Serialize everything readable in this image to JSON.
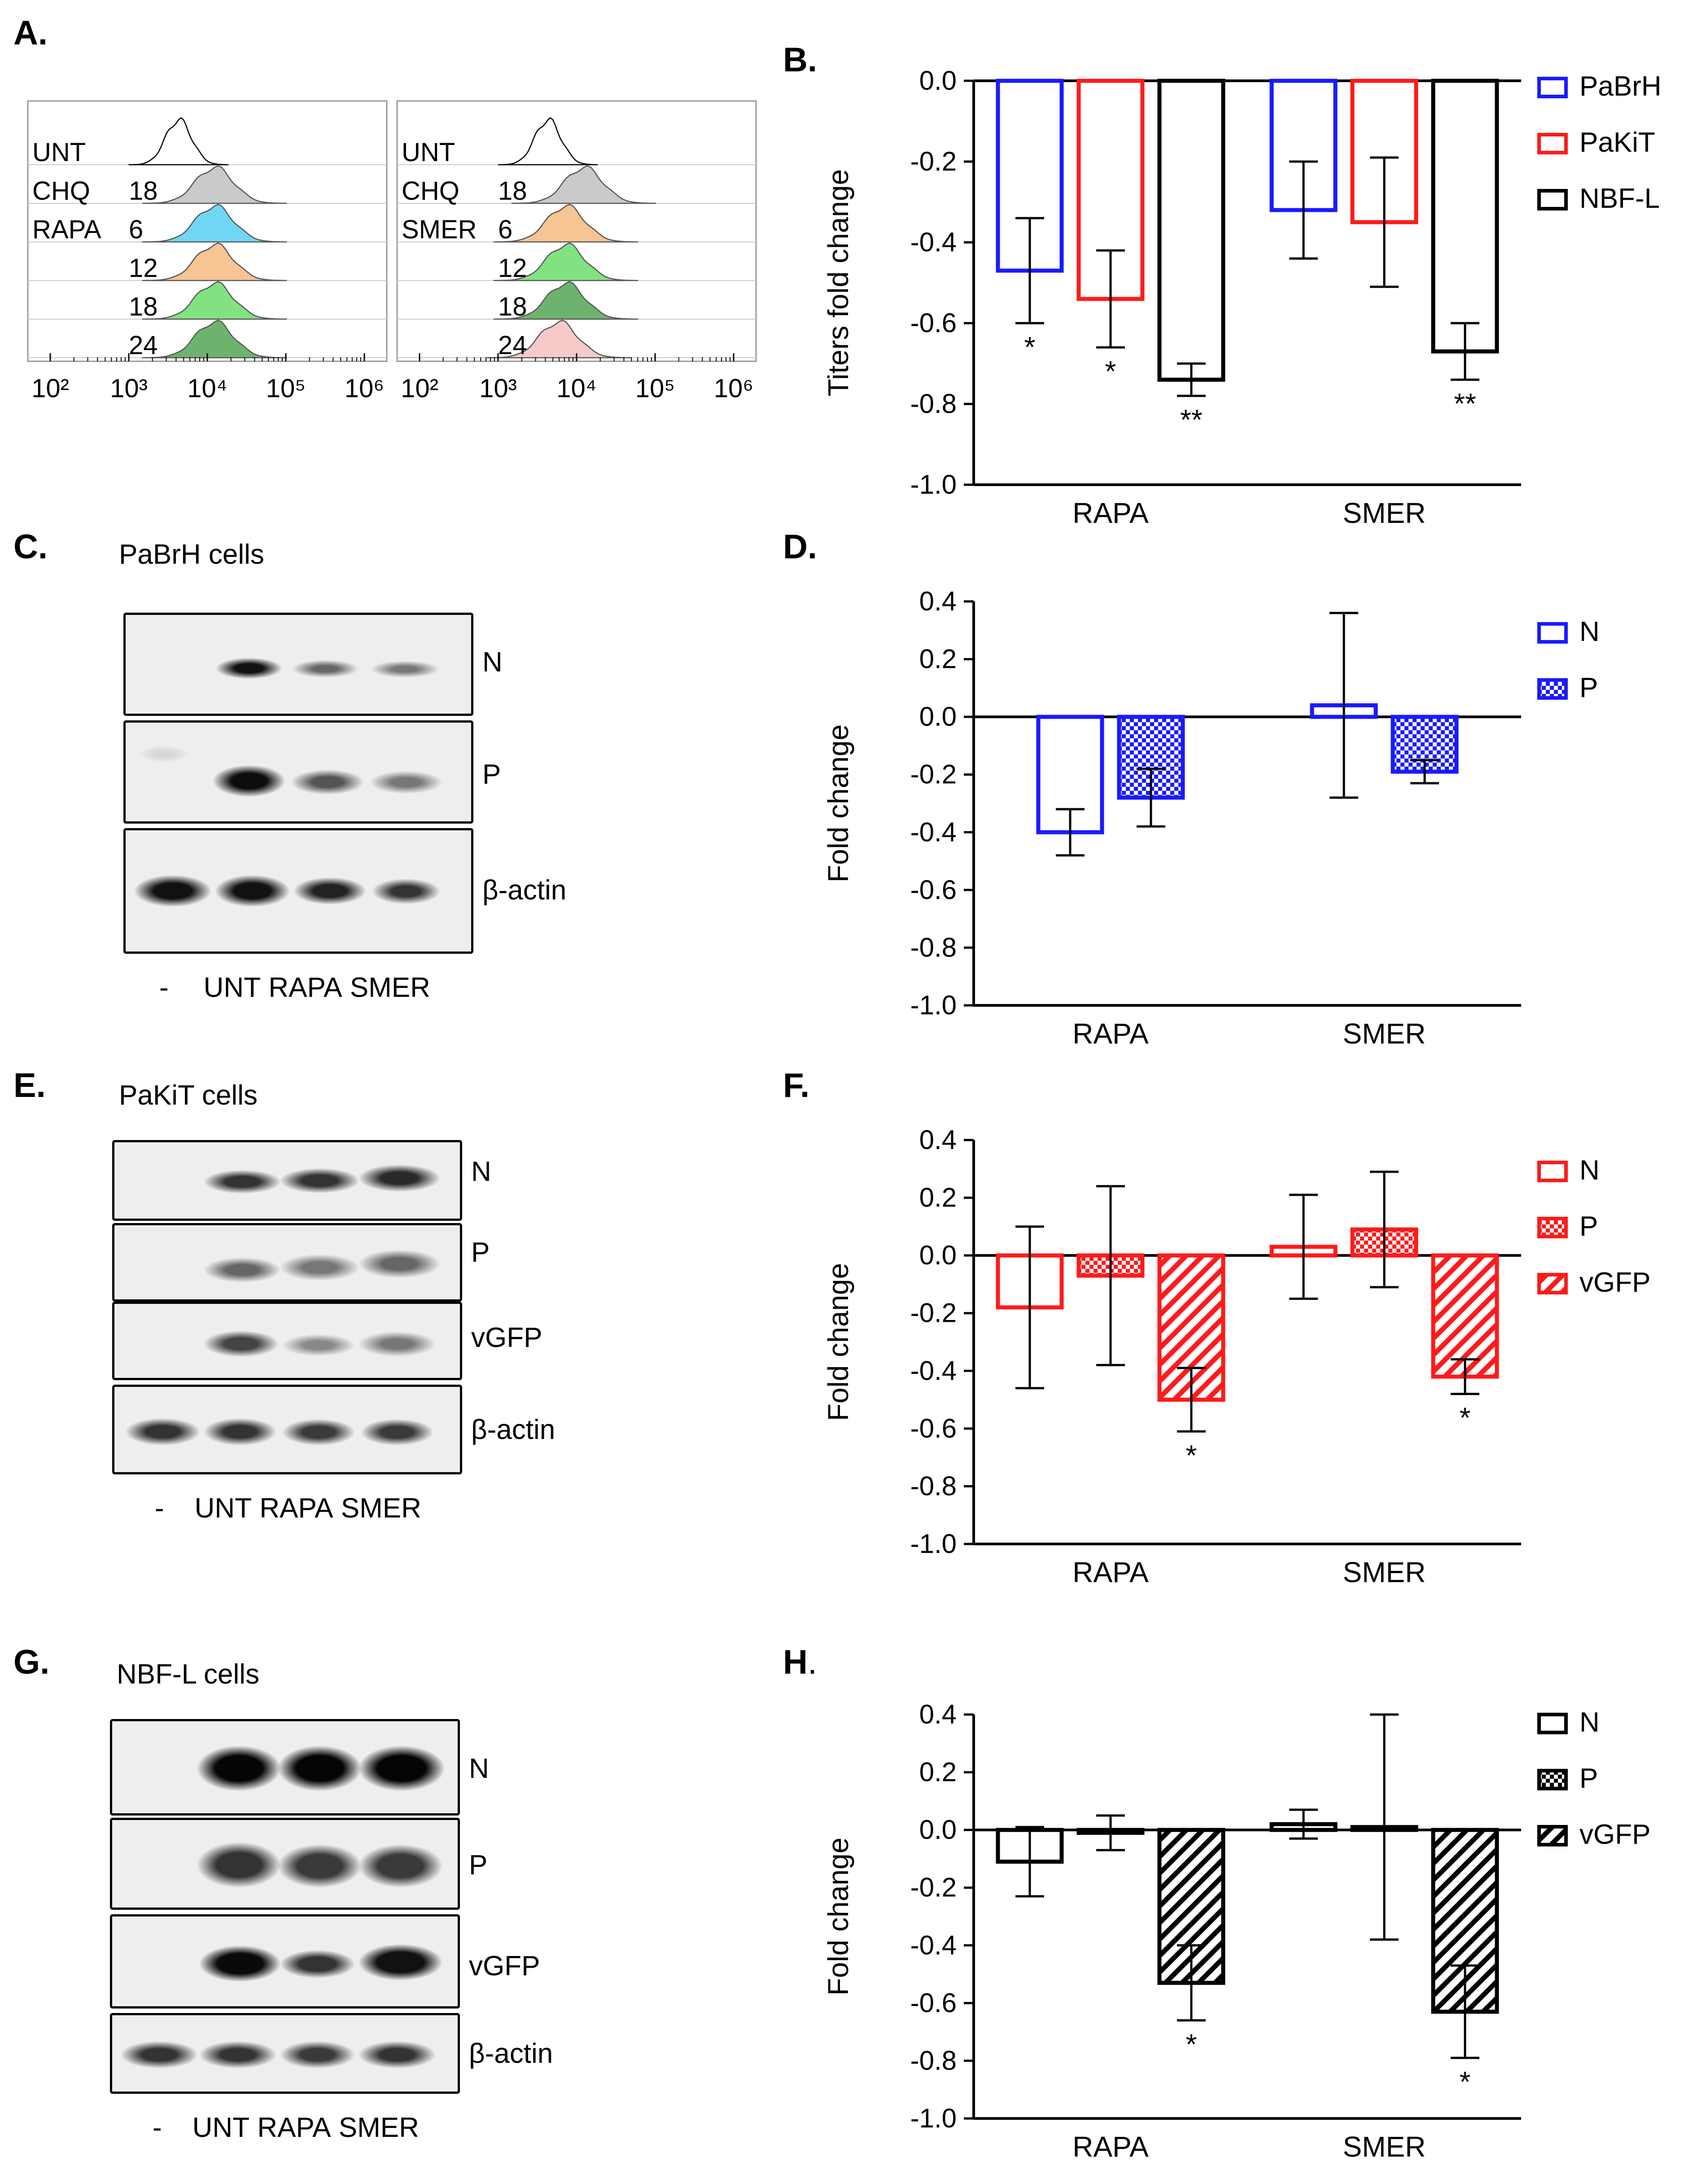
{
  "panels": {
    "A": "A.",
    "B": "B.",
    "C": "C.",
    "D": "D.",
    "E": "E.",
    "F": "F.",
    "G": "G.",
    "H": "H"
  },
  "panel_A": {
    "left": {
      "rows": [
        {
          "name": "UNT",
          "time": "",
          "color": "#ffffff"
        },
        {
          "name": "CHQ",
          "time": "18",
          "color": "#b8b8b8"
        },
        {
          "name": "RAPA",
          "time": "6",
          "color": "#40c8f0"
        },
        {
          "name": "",
          "time": "12",
          "color": "#f4b070"
        },
        {
          "name": "",
          "time": "18",
          "color": "#58d858"
        },
        {
          "name": "",
          "time": "24",
          "color": "#3c9a3c"
        }
      ]
    },
    "right": {
      "rows": [
        {
          "name": "UNT",
          "time": "",
          "color": "#ffffff"
        },
        {
          "name": "CHQ",
          "time": "18",
          "color": "#b8b8b8"
        },
        {
          "name": "SMER",
          "time": "6",
          "color": "#f4b070"
        },
        {
          "name": "",
          "time": "12",
          "color": "#58d858"
        },
        {
          "name": "",
          "time": "18",
          "color": "#3c9a3c"
        },
        {
          "name": "",
          "time": "24",
          "color": "#f4b8b8"
        }
      ]
    },
    "x_ticks": [
      "10²",
      "10³",
      "10⁴",
      "10⁵",
      "10⁶"
    ]
  },
  "blots": {
    "C": {
      "title": "PaBrH cells",
      "rows": [
        "N",
        "P",
        "β-actin"
      ],
      "lanes": [
        "-",
        "UNT",
        "RAPA",
        "SMER"
      ]
    },
    "E": {
      "title": "PaKiT cells",
      "rows": [
        "N",
        "P",
        "vGFP",
        "β-actin"
      ],
      "lanes": [
        "-",
        "UNT",
        "RAPA",
        "SMER"
      ]
    },
    "G": {
      "title": "NBF-L cells",
      "rows": [
        "N",
        "P",
        "vGFP",
        "β-actin"
      ],
      "lanes": [
        "-",
        "UNT",
        "RAPA",
        "SMER"
      ]
    }
  },
  "chart_data": [
    {
      "panel": "B",
      "type": "bar",
      "ylabel": "Titers fold change",
      "ylim": [
        -1.0,
        0.0
      ],
      "yticks": [
        "0.0",
        "-0.2",
        "-0.4",
        "-0.6",
        "-0.8",
        "-1.0"
      ],
      "categories": [
        "RAPA",
        "SMER"
      ],
      "series": [
        {
          "name": "PaBrH",
          "color": "#1a1aff",
          "pattern": "open",
          "values": [
            -0.47,
            -0.32
          ],
          "errors": [
            0.13,
            0.12
          ],
          "sig": [
            "*",
            ""
          ]
        },
        {
          "name": "PaKiT",
          "color": "#ff1a1a",
          "pattern": "open",
          "values": [
            -0.54,
            -0.35
          ],
          "errors": [
            0.12,
            0.16
          ],
          "sig": [
            "*",
            ""
          ]
        },
        {
          "name": "NBF-L",
          "color": "#000000",
          "pattern": "open",
          "values": [
            -0.74,
            -0.67
          ],
          "errors": [
            0.04,
            0.07
          ],
          "sig": [
            "**",
            "**"
          ]
        }
      ]
    },
    {
      "panel": "D",
      "type": "bar",
      "ylabel": "Fold change",
      "ylim": [
        -1.0,
        0.4
      ],
      "yticks": [
        "0.4",
        "0.2",
        "0.0",
        "-0.2",
        "-0.4",
        "-0.6",
        "-0.8",
        "-1.0"
      ],
      "categories": [
        "RAPA",
        "SMER"
      ],
      "series": [
        {
          "name": "N",
          "color": "#1a1aff",
          "pattern": "open",
          "values": [
            -0.4,
            0.04
          ],
          "errors": [
            0.08,
            0.32
          ],
          "sig": [
            "",
            ""
          ]
        },
        {
          "name": "P",
          "color": "#1a1aff",
          "pattern": "checker",
          "values": [
            -0.28,
            -0.19
          ],
          "errors": [
            0.1,
            0.04
          ],
          "sig": [
            "",
            ""
          ]
        }
      ]
    },
    {
      "panel": "F",
      "type": "bar",
      "ylabel": "Fold change",
      "ylim": [
        -1.0,
        0.4
      ],
      "yticks": [
        "0.4",
        "0.2",
        "0.0",
        "-0.2",
        "-0.4",
        "-0.6",
        "-0.8",
        "-1.0"
      ],
      "categories": [
        "RAPA",
        "SMER"
      ],
      "series": [
        {
          "name": "N",
          "color": "#ff1a1a",
          "pattern": "open",
          "values": [
            -0.18,
            0.03
          ],
          "errors": [
            0.28,
            0.18
          ],
          "sig": [
            "",
            ""
          ]
        },
        {
          "name": "P",
          "color": "#ff1a1a",
          "pattern": "checker",
          "values": [
            -0.07,
            0.09
          ],
          "errors": [
            0.31,
            0.2
          ],
          "sig": [
            "",
            ""
          ]
        },
        {
          "name": "vGFP",
          "color": "#ff1a1a",
          "pattern": "hatch",
          "values": [
            -0.5,
            -0.42
          ],
          "errors": [
            0.11,
            0.06
          ],
          "sig": [
            "*",
            "*"
          ]
        }
      ]
    },
    {
      "panel": "H",
      "type": "bar",
      "ylabel": "Fold change",
      "ylim": [
        -1.0,
        0.4
      ],
      "yticks": [
        "0.4",
        "0.2",
        "0.0",
        "-0.2",
        "-0.4",
        "-0.6",
        "-0.8",
        "-1.0"
      ],
      "categories": [
        "RAPA",
        "SMER"
      ],
      "series": [
        {
          "name": "N",
          "color": "#000000",
          "pattern": "open",
          "values": [
            -0.11,
            0.02
          ],
          "errors": [
            0.12,
            0.05
          ],
          "sig": [
            "",
            ""
          ]
        },
        {
          "name": "P",
          "color": "#000000",
          "pattern": "checker",
          "values": [
            -0.01,
            0.01
          ],
          "errors": [
            0.06,
            0.39
          ],
          "sig": [
            "",
            ""
          ]
        },
        {
          "name": "vGFP",
          "color": "#000000",
          "pattern": "hatch",
          "values": [
            -0.53,
            -0.63
          ],
          "errors": [
            0.13,
            0.16
          ],
          "sig": [
            "*",
            "*"
          ]
        }
      ]
    }
  ]
}
